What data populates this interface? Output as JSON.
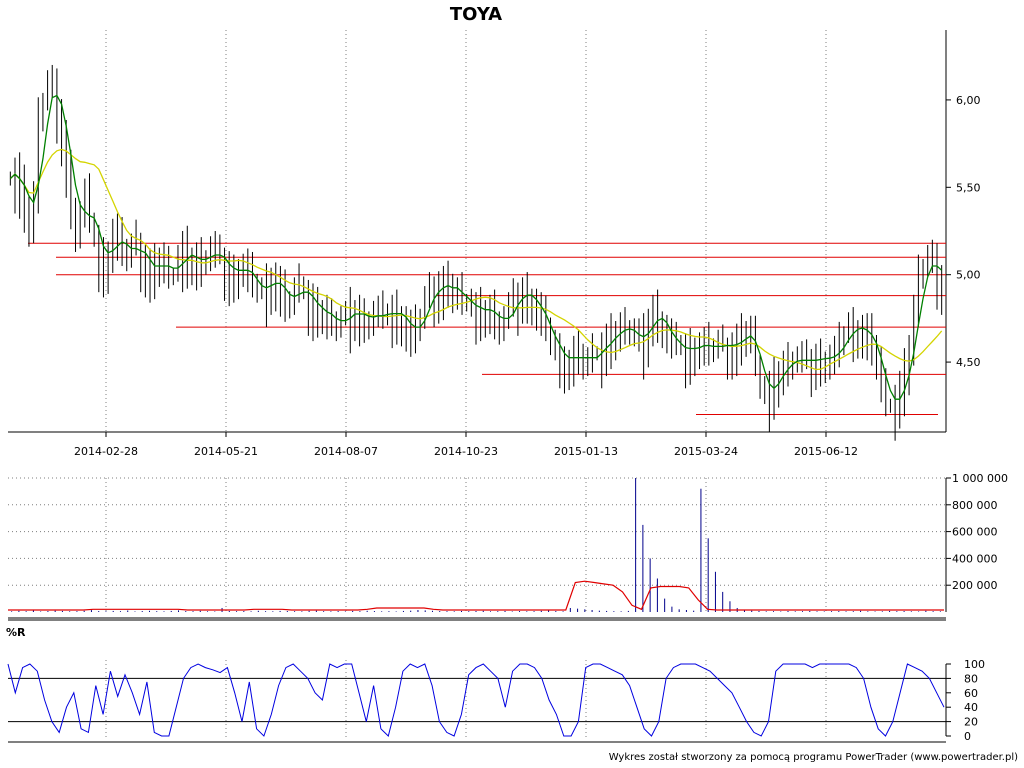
{
  "chart_data": [
    {
      "type": "ohlc",
      "title": "TOYA",
      "xlabel": "",
      "ylabel": "",
      "x_ticks": [
        "2014-02-28",
        "2014-05-21",
        "2014-08-07",
        "2014-10-23",
        "2015-01-13",
        "2015-03-24",
        "2015-06-12"
      ],
      "y_ticks": [
        "4,50",
        "5,00",
        "5,50",
        "6,00"
      ],
      "ylim": [
        4.1,
        6.4
      ],
      "close_series": [
        5.55,
        5.6,
        5.5,
        5.4,
        5.3,
        5.45,
        5.9,
        6.0,
        6.1,
        6.05,
        5.95,
        5.8,
        5.6,
        5.4,
        5.25,
        5.35,
        5.45,
        5.3,
        5.2,
        5.1,
        5.05,
        5.15,
        5.25,
        5.2,
        5.15,
        5.1,
        5.15,
        5.2,
        5.1,
        5.05,
        5.0,
        5.05,
        5.1,
        5.05,
        5.0,
        5.0,
        5.1,
        5.15,
        5.1,
        5.1,
        5.05,
        5.1,
        5.1,
        5.15,
        5.1,
        5.1,
        5.05,
        5.0,
        5.0,
        5.05,
        5.05,
        5.0,
        4.95,
        4.9,
        4.9,
        4.95,
        5.0,
        4.95,
        4.9,
        4.85,
        4.85,
        4.9,
        4.95,
        4.9,
        4.85,
        4.8,
        4.8,
        4.8,
        4.75,
        4.75,
        4.7,
        4.75,
        4.75,
        4.8,
        4.8,
        4.75,
        4.75,
        4.75,
        4.78,
        4.78,
        4.75,
        4.78,
        4.8,
        4.78,
        4.75,
        4.7,
        4.65,
        4.7,
        4.75,
        4.85,
        4.9,
        4.95,
        4.9,
        4.95,
        4.95,
        4.9,
        4.9,
        4.85,
        4.85,
        4.8,
        4.8,
        4.8,
        4.8,
        4.8,
        4.75,
        4.7,
        4.75,
        4.8,
        4.85,
        4.9,
        4.9,
        4.88,
        4.85,
        4.8,
        4.75,
        4.7,
        4.6,
        4.55,
        4.55,
        4.5,
        4.5,
        4.55,
        4.55,
        4.5,
        4.5,
        4.55,
        4.55,
        4.6,
        4.62,
        4.65,
        4.68,
        4.7,
        4.7,
        4.68,
        4.65,
        4.6,
        4.65,
        4.75,
        4.8,
        4.75,
        4.7,
        4.65,
        4.6,
        4.6,
        4.58,
        4.55,
        4.58,
        4.6,
        4.6,
        4.6,
        4.58,
        4.58,
        4.6,
        4.6,
        4.6,
        4.58,
        4.62,
        4.65,
        4.68,
        4.65,
        4.5,
        4.35,
        4.3,
        4.35,
        4.4,
        4.45,
        4.48,
        4.5,
        4.52,
        4.52,
        4.5,
        4.5,
        4.52,
        4.52,
        4.52,
        4.52,
        4.53,
        4.55,
        4.6,
        4.65,
        4.7,
        4.7,
        4.7,
        4.68,
        4.65,
        4.6,
        4.5,
        4.35,
        4.25,
        4.25,
        4.3,
        4.35,
        4.45,
        4.6,
        4.8,
        5.0,
        5.05,
        5.1,
        5.05,
        5.0,
        4.95
      ],
      "ma_short_color": "#008000",
      "ma_long_color": "#d4d400",
      "price_color": "#000000",
      "support_resistance_levels": [
        5.18,
        5.1,
        5.0,
        4.88,
        4.7,
        4.43,
        4.2
      ],
      "level_color": "#e00000",
      "grid": true
    },
    {
      "type": "bar",
      "title": "",
      "y_ticks": [
        "200 000",
        "400 000",
        "600 000",
        "800 000",
        "1 000 000"
      ],
      "ylim": [
        0,
        1000000
      ],
      "volume_values": [
        5000,
        9000,
        6000,
        12000,
        4000,
        7000,
        10000,
        8000,
        5000,
        6000,
        9000,
        14000,
        7000,
        5000,
        8000,
        6000,
        11000,
        4000,
        7000,
        9000,
        6000,
        5000,
        8000,
        12000,
        7000,
        6000,
        9000,
        5000,
        4000,
        30000,
        8000,
        6000,
        7000,
        5000,
        9000,
        6000,
        5000,
        8000,
        7000,
        6000,
        5000,
        9000,
        10000,
        6000,
        5000,
        7000,
        4000,
        8000,
        6000,
        9000,
        7000,
        5000,
        6000,
        4000,
        8000,
        10000,
        15000,
        12000,
        9000,
        7000,
        6000,
        5000,
        8000,
        6000,
        7000,
        9000,
        5000,
        6000,
        8000,
        4000,
        7000,
        5000,
        6000,
        9000,
        12000,
        7000,
        5000,
        30000,
        25000,
        20000,
        15000,
        10000,
        8000,
        6000,
        5000,
        8000,
        1000000,
        650000,
        400000,
        250000,
        100000,
        40000,
        20000,
        15000,
        10000,
        920000,
        550000,
        300000,
        150000,
        80000,
        30000,
        15000,
        10000,
        8000,
        5000,
        6000,
        4000,
        7000,
        5000,
        6000,
        8000,
        5000,
        4000,
        6000,
        7000,
        5000,
        6000,
        9000,
        5000,
        4000,
        5000,
        8000,
        6000,
        7000,
        5000,
        4000,
        9000,
        6000,
        5000
      ],
      "volume_ma": [
        15000,
        15000,
        15000,
        15000,
        15000,
        15000,
        15000,
        15000,
        15000,
        20000,
        20000,
        20000,
        20000,
        20000,
        20000,
        20000,
        20000,
        20000,
        20000,
        15000,
        15000,
        15000,
        15000,
        15000,
        15000,
        15000,
        20000,
        20000,
        20000,
        20000,
        15000,
        15000,
        15000,
        15000,
        15000,
        15000,
        15000,
        15000,
        20000,
        30000,
        30000,
        30000,
        30000,
        30000,
        30000,
        20000,
        15000,
        15000,
        15000,
        15000,
        15000,
        15000,
        15000,
        15000,
        15000,
        15000,
        15000,
        15000,
        15000,
        15000,
        220000,
        230000,
        220000,
        210000,
        200000,
        150000,
        50000,
        20000,
        180000,
        190000,
        190000,
        190000,
        180000,
        90000,
        20000,
        15000,
        15000,
        15000,
        15000,
        15000,
        15000,
        15000,
        15000,
        15000,
        15000,
        15000,
        15000,
        15000,
        15000,
        15000,
        15000,
        15000,
        15000,
        15000,
        15000,
        15000,
        15000,
        15000,
        15000,
        15000
      ],
      "volume_bar_color": "#00008b",
      "volume_ma_color": "#e00000",
      "grid": true
    },
    {
      "type": "line",
      "title": "%R",
      "y_ticks": [
        "0",
        "20",
        "40",
        "60",
        "80",
        "100"
      ],
      "ylim": [
        0,
        100
      ],
      "reference_levels": [
        20,
        80
      ],
      "series": [
        {
          "values": [
            100,
            60,
            95,
            100,
            90,
            50,
            20,
            5,
            40,
            60,
            10,
            5,
            70,
            30,
            90,
            55,
            85,
            60,
            30,
            75,
            5,
            0,
            0,
            40,
            80,
            95,
            100,
            95,
            92,
            88,
            95,
            60,
            20,
            75,
            10,
            0,
            30,
            70,
            95,
            100,
            90,
            80,
            60,
            50,
            100,
            95,
            100,
            100,
            60,
            20,
            70,
            10,
            0,
            40,
            90,
            100,
            95,
            100,
            70,
            20,
            5,
            0,
            30,
            85,
            95,
            100,
            90,
            80,
            40,
            90,
            100,
            100,
            95,
            80,
            50,
            30,
            0,
            0,
            20,
            95,
            100,
            100,
            95,
            90,
            85,
            70,
            40,
            10,
            0,
            20,
            80,
            95,
            100,
            100,
            100,
            95,
            90,
            80,
            70,
            60,
            40,
            20,
            5,
            0,
            20,
            90,
            100,
            100,
            100,
            100,
            95,
            100,
            100,
            100,
            100,
            100,
            95,
            80,
            40,
            10,
            0,
            20,
            60,
            100,
            95,
            90,
            80,
            60,
            40
          ],
          "color": "#0000e0"
        }
      ],
      "grid": true
    }
  ],
  "credit": "Wykres został stworzony za pomocą programu PowerTrader (www.powertrader.pl)"
}
